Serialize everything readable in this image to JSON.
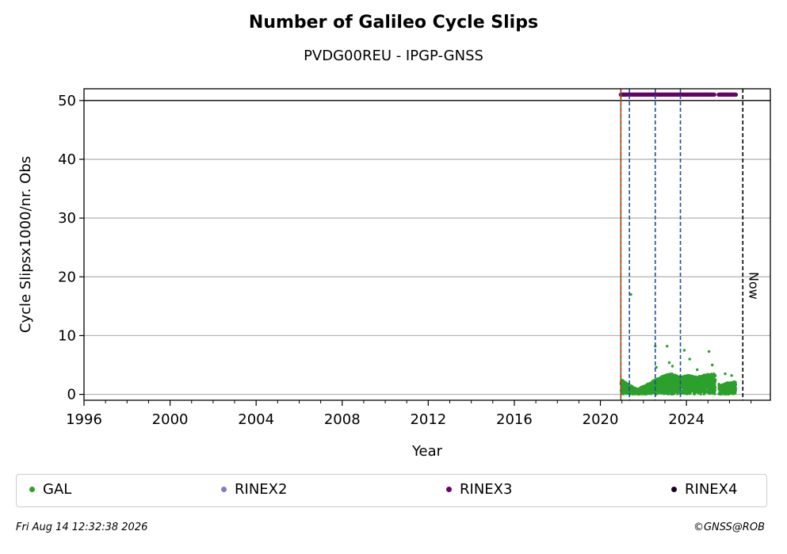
{
  "chart_data": {
    "type": "scatter",
    "title": "Number of Galileo Cycle Slips",
    "subtitle": "PVDG00REU - IPGP-GNSS",
    "xlabel": "Year",
    "ylabel": "Cycle Slipsx1000/nr. Obs",
    "xlim": [
      1996.0,
      2027.9
    ],
    "ylim": [
      -1,
      52
    ],
    "xticks": [
      "1996",
      "2000",
      "2004",
      "2008",
      "2012",
      "2016",
      "2020",
      "2024"
    ],
    "yticks": [
      "0",
      "10",
      "20",
      "30",
      "40",
      "50"
    ],
    "grid": "horizontal",
    "ref_line_y": 50,
    "vlines": [
      {
        "x": 2020.95,
        "color": "#228B22",
        "style": "solid"
      },
      {
        "x": 2020.95,
        "color": "#d62728",
        "style": "dashed"
      },
      {
        "x": 2021.35,
        "color": "#1f4e9c",
        "style": "dashed"
      },
      {
        "x": 2022.55,
        "color": "#1f4e9c",
        "style": "dashed"
      },
      {
        "x": 2023.72,
        "color": "#1f4e9c",
        "style": "dashed"
      },
      {
        "x": 2026.62,
        "color": "#000000",
        "style": "dashed"
      }
    ],
    "now_label": "Now",
    "rinex3_ranges": [
      [
        2020.95,
        2025.3
      ],
      [
        2025.5,
        2026.3
      ]
    ],
    "rinex3_y": 51,
    "gal_outliers": [
      {
        "x": 2021.42,
        "y": 17.0
      },
      {
        "x": 2022.55,
        "y": 8.2
      },
      {
        "x": 2022.6,
        "y": 4.6
      },
      {
        "x": 2023.1,
        "y": 8.2
      },
      {
        "x": 2023.2,
        "y": 5.4
      },
      {
        "x": 2023.35,
        "y": 4.8
      },
      {
        "x": 2023.9,
        "y": 7.5
      },
      {
        "x": 2024.15,
        "y": 6.0
      },
      {
        "x": 2024.5,
        "y": 4.2
      },
      {
        "x": 2025.05,
        "y": 7.3
      },
      {
        "x": 2025.2,
        "y": 5.0
      },
      {
        "x": 2025.8,
        "y": 3.5
      },
      {
        "x": 2026.1,
        "y": 3.2
      }
    ],
    "gal_envelope": [
      {
        "x": 2020.95,
        "y": 2.6
      },
      {
        "x": 2021.3,
        "y": 1.8
      },
      {
        "x": 2021.7,
        "y": 0.9
      },
      {
        "x": 2022.1,
        "y": 1.6
      },
      {
        "x": 2022.5,
        "y": 2.4
      },
      {
        "x": 2022.9,
        "y": 3.2
      },
      {
        "x": 2023.3,
        "y": 3.6
      },
      {
        "x": 2023.7,
        "y": 3.0
      },
      {
        "x": 2024.1,
        "y": 3.3
      },
      {
        "x": 2024.5,
        "y": 3.0
      },
      {
        "x": 2024.9,
        "y": 3.4
      },
      {
        "x": 2025.3,
        "y": 3.6
      },
      {
        "x": 2025.55,
        "y": 1.5
      },
      {
        "x": 2025.9,
        "y": 2.0
      },
      {
        "x": 2026.3,
        "y": 2.2
      }
    ],
    "gal_gap": [
      2025.35,
      2025.5
    ],
    "legend": [
      {
        "label": "GAL",
        "color": "#2ca02c"
      },
      {
        "label": "RINEX2",
        "color": "#7b7fbf"
      },
      {
        "label": "RINEX3",
        "color": "#6a006a"
      },
      {
        "label": "RINEX4",
        "color": "#1a0022"
      }
    ]
  },
  "footer": {
    "left": "Fri Aug 14 12:32:38 2026",
    "right": "©GNSS@ROB"
  }
}
